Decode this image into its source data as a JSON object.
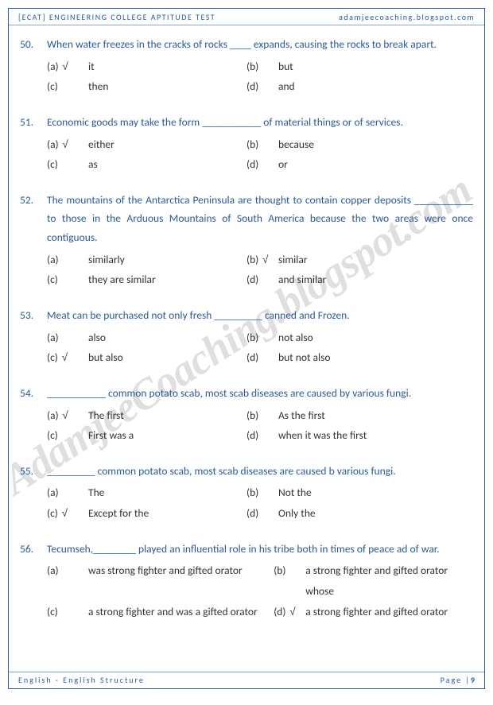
{
  "header": {
    "left_bracket": "[ECAT]",
    "left_rest": " ENGINEERING COLLEGE APTITUDE TEST",
    "right": "adamjeecoaching.blogspot.com"
  },
  "footer": {
    "left": "English - English Structure",
    "right_label": "Page |",
    "right_num": "9"
  },
  "watermark": "AdamjeeCoaching.blogspot.com",
  "questions": [
    {
      "num": "50.",
      "text": "When water freezes in the cracks of rocks ____ expands, causing the rocks to break apart.",
      "justify": false,
      "options": [
        {
          "label": "(a)",
          "check": true,
          "text": "it"
        },
        {
          "label": "(b)",
          "check": false,
          "text": "but"
        },
        {
          "label": "(c)",
          "check": false,
          "text": "then"
        },
        {
          "label": "(d)",
          "check": false,
          "text": "and"
        }
      ]
    },
    {
      "num": "51.",
      "text": "Economic goods may take the form ___________ of material things or of services.",
      "justify": false,
      "options": [
        {
          "label": "(a)",
          "check": true,
          "text": "either"
        },
        {
          "label": "(b)",
          "check": false,
          "text": "because"
        },
        {
          "label": "(c)",
          "check": false,
          "text": "as"
        },
        {
          "label": "(d)",
          "check": false,
          "text": "or"
        }
      ]
    },
    {
      "num": "52.",
      "text": "The mountains of the Antarctica Peninsula are thought to contain copper deposits ___________ to those in the Arduous Mountains of South America because the two areas were once contiguous.",
      "justify": true,
      "options": [
        {
          "label": "(a)",
          "check": false,
          "text": "similarly"
        },
        {
          "label": "(b)",
          "check": true,
          "text": "similar"
        },
        {
          "label": "(c)",
          "check": false,
          "text": "they are similar"
        },
        {
          "label": "(d)",
          "check": false,
          "text": "and similar"
        }
      ]
    },
    {
      "num": "53.",
      "text": "Meat can be purchased not only fresh _________ canned and Frozen.",
      "justify": false,
      "options": [
        {
          "label": "(a)",
          "check": false,
          "text": "also"
        },
        {
          "label": "(b)",
          "check": false,
          "text": "not also"
        },
        {
          "label": "(c)",
          "check": true,
          "text": "but also"
        },
        {
          "label": "(d)",
          "check": false,
          "text": "but not also"
        }
      ]
    },
    {
      "num": "54.",
      "text": "___________ common potato scab, most scab diseases are caused by various fungi.",
      "justify": false,
      "options": [
        {
          "label": "(a)",
          "check": true,
          "text": "The first"
        },
        {
          "label": "(b)",
          "check": false,
          "text": "As the first"
        },
        {
          "label": "(c)",
          "check": false,
          "text": "First was a"
        },
        {
          "label": "(d)",
          "check": false,
          "text": "when it was the first"
        }
      ]
    },
    {
      "num": "55.",
      "text": "_________ common potato scab, most scab diseases are caused b various fungi.",
      "justify": false,
      "options": [
        {
          "label": "(a)",
          "check": false,
          "text": "The"
        },
        {
          "label": "(b)",
          "check": false,
          "text": "Not the"
        },
        {
          "label": "(c)",
          "check": true,
          "text": "Except for the"
        },
        {
          "label": "(d)",
          "check": false,
          "text": "Only the"
        }
      ]
    },
    {
      "num": "56.",
      "text": "Tecumseh,________ played an influential role in his tribe both in times of peace ad of war.",
      "justify": false,
      "wide": true,
      "options": [
        {
          "label": "(a)",
          "check": false,
          "text": "was strong fighter and gifted orator"
        },
        {
          "label": "(b)",
          "check": false,
          "text": "a strong fighter and gifted orator whose"
        },
        {
          "label": "(c)",
          "check": false,
          "text": "a strong fighter and was a gifted orator"
        },
        {
          "label": "(d)",
          "check": true,
          "text": "a strong fighter and gifted orator"
        }
      ]
    }
  ]
}
